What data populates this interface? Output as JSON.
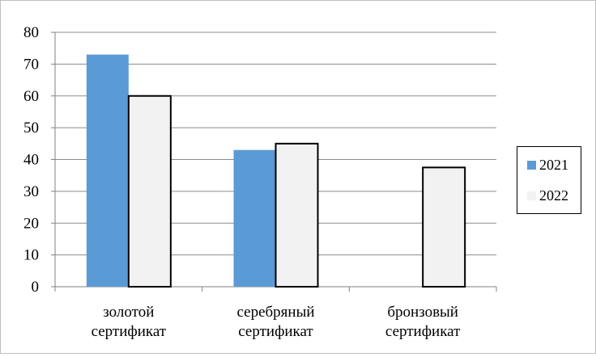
{
  "chart_data": {
    "type": "bar",
    "categories": [
      [
        "золотой",
        "сертификат"
      ],
      [
        "серебряный",
        "сертификат"
      ],
      [
        "бронзовый",
        "сертификат"
      ]
    ],
    "series": [
      {
        "name": "2021",
        "values": [
          73,
          43,
          0
        ],
        "color": "#5b9bd5"
      },
      {
        "name": "2022",
        "values": [
          60,
          45,
          37.5
        ],
        "color": "#f2f2f2"
      }
    ],
    "y_ticks": [
      "0",
      "10",
      "20",
      "30",
      "40",
      "50",
      "60",
      "70",
      "80"
    ],
    "ylim": [
      0,
      80
    ],
    "grid": true,
    "legend": "right"
  }
}
